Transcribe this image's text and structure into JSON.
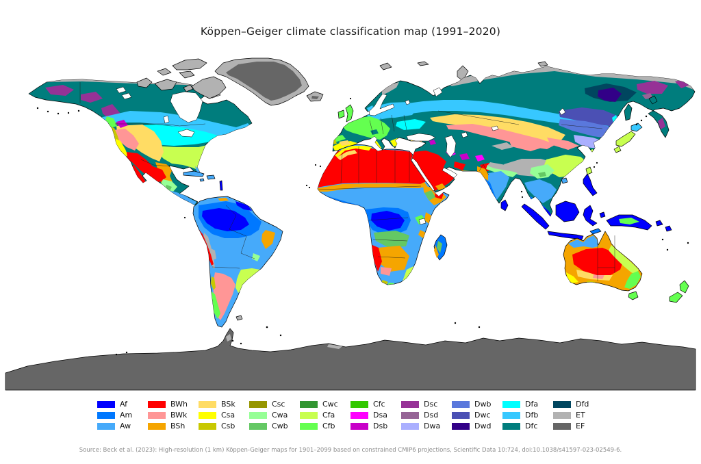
{
  "title": "Köppen–Geiger climate classification map (1991–2020)",
  "source": "Source: Beck et al. (2023): High-resolution (1 km) Köppen-Geiger maps for 1901–2099 based on constrained CMIP6 projections, Scientific Data 10:724, doi:10.1038/s41597-023-02549-6.",
  "legend": {
    "columns": [
      [
        "Af",
        "Am",
        "Aw"
      ],
      [
        "BWh",
        "BWk",
        "BSh"
      ],
      [
        "BSk",
        "Csa",
        "Csb"
      ],
      [
        "Csc",
        "Cwa",
        "Cwb"
      ],
      [
        "Cwc",
        "Cfa",
        "Cfb"
      ],
      [
        "Cfc",
        "Dsa",
        "Dsb"
      ],
      [
        "Dsc",
        "Dsd",
        "Dwa"
      ],
      [
        "Dwb",
        "Dwc",
        "Dwd"
      ],
      [
        "Dfa",
        "Dfb",
        "Dfc"
      ],
      [
        "Dfd",
        "ET",
        "EF"
      ]
    ]
  },
  "palette": {
    "Af": "#0000FF",
    "Am": "#0078FF",
    "Aw": "#46AAFA",
    "BWh": "#FF0000",
    "BWk": "#FF9696",
    "BSh": "#F5A500",
    "BSk": "#FFDC64",
    "Csa": "#FFFF00",
    "Csb": "#C8C800",
    "Csc": "#969600",
    "Cwa": "#96FF96",
    "Cwb": "#64C864",
    "Cwc": "#329632",
    "Cfa": "#C8FF50",
    "Cfb": "#64FF50",
    "Cfc": "#32C800",
    "Dsa": "#FF00FF",
    "Dsb": "#C800C8",
    "Dsc": "#963296",
    "Dsd": "#966496",
    "Dwa": "#AAAFFF",
    "Dwb": "#5A78DC",
    "Dwc": "#4B50B4",
    "Dwd": "#320087",
    "Dfa": "#00FFFF",
    "Dfb": "#37C8FF",
    "Dfc": "#007D7D",
    "Dfd": "#00465F",
    "ET": "#B2B2B2",
    "EF": "#666666"
  },
  "map": {
    "ocean_color": "#FFFFFF",
    "coastline_color": "#000000",
    "country_border_color": "#1C1C1C"
  }
}
